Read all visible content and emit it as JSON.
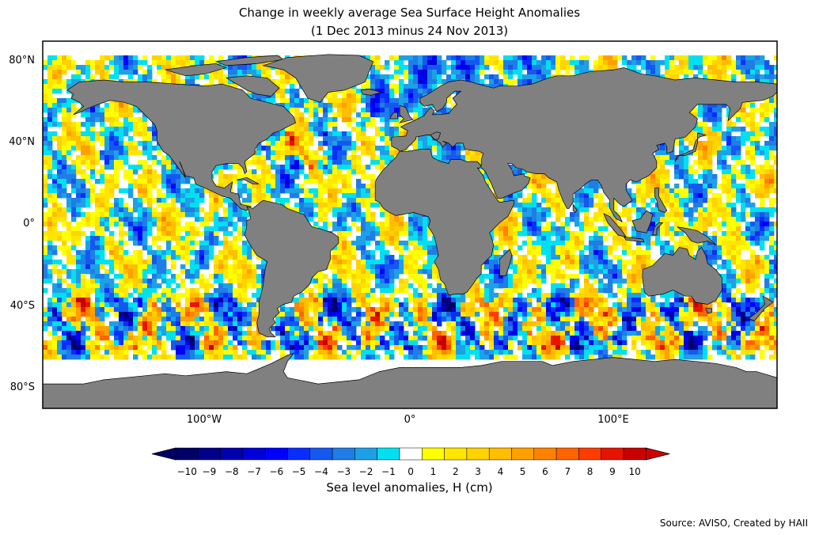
{
  "title": "Change in weekly average Sea Surface Height Anomalies",
  "subtitle": "(1 Dec 2013 minus 24 Nov 2013)",
  "lat_labels": [
    "80°N",
    "40°N",
    "0°",
    "40°S",
    "80°S"
  ],
  "lat_values": [
    80,
    40,
    0,
    -40,
    -80
  ],
  "lon_labels": [
    "100°W",
    "0°",
    "100°E"
  ],
  "lon_values": [
    -100,
    0,
    100
  ],
  "map_extent": {
    "lon": [
      -180,
      180
    ],
    "lat": [
      -90,
      90
    ]
  },
  "colorbar": {
    "label": "Sea level anomalies, H (cm)",
    "ticks": [
      "−10",
      "−9",
      "−8",
      "−7",
      "−6",
      "−5",
      "−4",
      "−3",
      "−2",
      "−1",
      "0",
      "1",
      "2",
      "3",
      "4",
      "5",
      "6",
      "7",
      "8",
      "9",
      "10"
    ],
    "range": [
      -10,
      10
    ],
    "colors": [
      "#000066",
      "#00008b",
      "#0000b0",
      "#0000d8",
      "#0000ff",
      "#0a2dff",
      "#1558f0",
      "#1e7de6",
      "#1ea0e6",
      "#00e0f0",
      "#ffffff",
      "#ffff00",
      "#ffe600",
      "#ffd200",
      "#ffbe00",
      "#ffa000",
      "#ff8200",
      "#ff6400",
      "#ff3c00",
      "#e61400",
      "#c80000"
    ],
    "extend": "both"
  },
  "land_color": "#808080",
  "source": "Source: AVISO, Created by HAII"
}
